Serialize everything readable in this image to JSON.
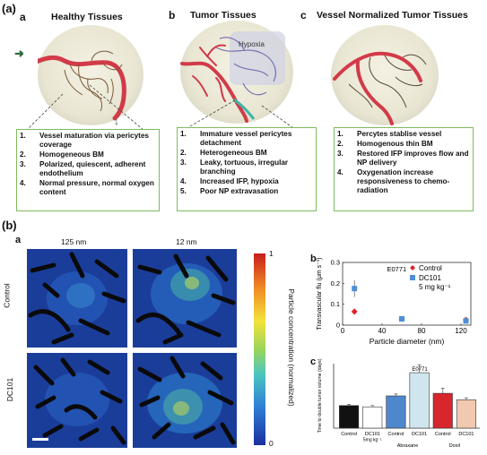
{
  "part_a": {
    "tag": "(a)",
    "panels": [
      {
        "letter": "a",
        "title": "Healthy Tissues",
        "items": [
          {
            "n": "1.",
            "text": "Vessel maturation via pericytes coverage"
          },
          {
            "n": "2.",
            "text": "Homogeneous BM"
          },
          {
            "n": "3.",
            "text": "Polarized, quiescent, adherent endothelium"
          },
          {
            "n": "4.",
            "text": "Normal pressure, normal oxygen content"
          }
        ]
      },
      {
        "letter": "b",
        "title": "Tumor Tissues",
        "hypoxia_label": "Hypoxia",
        "items": [
          {
            "n": "1.",
            "text": "Immature vessel pericytes detachment"
          },
          {
            "n": "2.",
            "text": "Heterogeneous BM"
          },
          {
            "n": "3.",
            "text": "Leaky, tortuous, irregular branching"
          },
          {
            "n": "4.",
            "text": "Increased IFP, hypoxia"
          },
          {
            "n": "5.",
            "text": "Poor NP extravasation"
          }
        ]
      },
      {
        "letter": "c",
        "title": "Vessel Normalized Tumor Tissues",
        "items": [
          {
            "n": "1.",
            "text": "Percytes stablise vessel"
          },
          {
            "n": "2.",
            "text": "Homogenous thin BM"
          },
          {
            "n": "3.",
            "text": "Restored IFP improves flow and NP delivery"
          },
          {
            "n": "4.",
            "text": "Oxygenation increase responsiveness to chemo-radiation"
          }
        ]
      }
    ]
  },
  "part_b": {
    "tag": "(b)",
    "imaging": {
      "letter": "a",
      "col_labels": [
        "125 nm",
        "12 nm"
      ],
      "row_labels": [
        "Control",
        "DC101"
      ],
      "colorbar": {
        "label": "Particle concentration (normalized)",
        "max": "1",
        "min": "0"
      }
    },
    "chart_data": [
      {
        "letter": "b",
        "type": "scatter",
        "title": "E0771",
        "xlabel": "Particle diameter (nm)",
        "ylabel": "Transvascular flu (μm s⁻¹)",
        "xlim": [
          0,
          130
        ],
        "ylim": [
          0,
          0.3
        ],
        "xticks": [
          "0",
          "40",
          "80",
          "120"
        ],
        "yticks": [
          "0",
          "0.1",
          "0.2",
          "0.3"
        ],
        "legend_position": "top-right",
        "series": [
          {
            "name": "Control",
            "color": "#d7262c",
            "marker": "diamond",
            "points": [
              {
                "x": 12,
                "y": 0.065,
                "err": 0.015
              },
              {
                "x": 60,
                "y": 0.03,
                "err": 0.012
              },
              {
                "x": 125,
                "y": 0.025,
                "err": 0.008
              }
            ]
          },
          {
            "name": "DC101 5 mg kg⁻¹",
            "color": "#4f8fd6",
            "marker": "square",
            "points": [
              {
                "x": 12,
                "y": 0.175,
                "err": 0.04
              },
              {
                "x": 60,
                "y": 0.03,
                "err": 0.01
              },
              {
                "x": 125,
                "y": 0.02,
                "err": 0.008
              }
            ]
          }
        ]
      },
      {
        "letter": "c",
        "type": "bar",
        "title": "E0771",
        "ylabel": "Time to double tumor volume (days)",
        "ylim": [
          0,
          10
        ],
        "categories": [
          "Control",
          "DC101 5mg kg⁻¹",
          "Control",
          "DC101",
          "Control",
          "DC101"
        ],
        "group_labels": [
          "Abraxane",
          "Doxil"
        ],
        "values": [
          3.5,
          3.3,
          5.0,
          8.6,
          5.4,
          4.4
        ],
        "errors": [
          0.2,
          0.2,
          0.3,
          1.2,
          0.8,
          0.3
        ],
        "colors": [
          "#111111",
          "#ffffff",
          "#4f87cc",
          "#cfe6ee",
          "#d7262c",
          "#f2c9b0"
        ]
      }
    ]
  }
}
